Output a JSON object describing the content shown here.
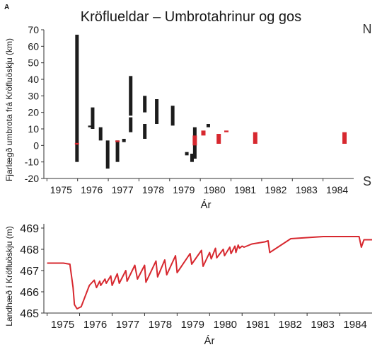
{
  "panel_label": "A",
  "title": "Kröflueldar – Umbrotahrinur og gos",
  "chart_data": [
    {
      "type": "bar",
      "subtype": "floating-range",
      "title": "Kröflueldar – Umbrotahrinur og gos",
      "xlabel": "Ár",
      "ylabel": "Fjarlægð umbrota frá Kröfluöskju (km)",
      "xticks": [
        "1975",
        "1976",
        "1977",
        "1978",
        "1979",
        "1980",
        "1981",
        "1982",
        "1983",
        "1984"
      ],
      "yticks": [
        -20,
        -10,
        0,
        10,
        20,
        30,
        40,
        50,
        60,
        70
      ],
      "xlim": [
        1974.9,
        1985.0
      ],
      "ylim": [
        -20,
        70
      ],
      "compass": {
        "top": "N",
        "bottom": "S"
      },
      "colors": {
        "rifting": "#1c1c1c",
        "eruption": "#d7282f"
      },
      "series": [
        {
          "kind": "rifting",
          "bars": [
            {
              "x": 1975.98,
              "ymin": -10,
              "ymax": 67
            },
            {
              "x": 1976.4,
              "ymin": 11,
              "ymax": 12
            },
            {
              "x": 1976.49,
              "ymin": 10,
              "ymax": 23
            },
            {
              "x": 1976.75,
              "ymin": 3,
              "ymax": 11
            },
            {
              "x": 1976.98,
              "ymin": -14,
              "ymax": 3
            },
            {
              "x": 1977.3,
              "ymin": -10,
              "ymax": 3
            },
            {
              "x": 1977.51,
              "ymin": 2,
              "ymax": 4
            },
            {
              "x": 1977.73,
              "ymin": 18,
              "ymax": 42
            },
            {
              "x": 1977.73,
              "ymin": 8,
              "ymax": 17
            },
            {
              "x": 1978.19,
              "ymin": 20,
              "ymax": 30
            },
            {
              "x": 1978.19,
              "ymin": 4,
              "ymax": 13
            },
            {
              "x": 1978.58,
              "ymin": 13,
              "ymax": 28
            },
            {
              "x": 1979.1,
              "ymin": 12,
              "ymax": 24
            },
            {
              "x": 1979.56,
              "ymin": -6,
              "ymax": -4
            },
            {
              "x": 1979.73,
              "ymin": -10,
              "ymax": -5
            },
            {
              "x": 1979.82,
              "ymin": -8,
              "ymax": 11
            },
            {
              "x": 1980.26,
              "ymin": 11,
              "ymax": 13
            }
          ]
        },
        {
          "kind": "eruption",
          "bars": [
            {
              "x": 1975.98,
              "ymin": 0.5,
              "ymax": 1.5
            },
            {
              "x": 1977.3,
              "ymin": 2,
              "ymax": 3
            },
            {
              "x": 1979.82,
              "ymin": 0,
              "ymax": 6
            },
            {
              "x": 1980.1,
              "ymin": 6,
              "ymax": 9
            },
            {
              "x": 1980.6,
              "ymin": 1,
              "ymax": 7
            },
            {
              "x": 1980.85,
              "ymin": 8,
              "ymax": 9
            },
            {
              "x": 1981.79,
              "ymin": 1,
              "ymax": 8
            },
            {
              "x": 1984.7,
              "ymin": 1,
              "ymax": 8
            }
          ]
        }
      ]
    },
    {
      "type": "line",
      "xlabel": "Ár",
      "ylabel": "Landhæð í Kröfluöskju (m)",
      "xticks": [
        "1975",
        "1976",
        "1977",
        "1978",
        "1979",
        "1980",
        "1981",
        "1982",
        "1983",
        "1984"
      ],
      "yticks": [
        465,
        466,
        467,
        468,
        469
      ],
      "xlim": [
        1974.9,
        1985.0
      ],
      "ylim": [
        465,
        469
      ],
      "color": "#d7282f",
      "x": [
        1975.0,
        1975.5,
        1975.7,
        1975.8,
        1975.84,
        1975.92,
        1976.05,
        1976.3,
        1976.45,
        1976.52,
        1976.62,
        1976.65,
        1976.78,
        1976.82,
        1976.96,
        1977.0,
        1977.16,
        1977.22,
        1977.42,
        1977.46,
        1977.7,
        1977.78,
        1978.0,
        1978.04,
        1978.35,
        1978.4,
        1978.62,
        1978.68,
        1978.95,
        1979.0,
        1979.4,
        1979.45,
        1979.75,
        1979.8,
        1980.0,
        1980.05,
        1980.18,
        1980.22,
        1980.42,
        1980.46,
        1980.62,
        1980.66,
        1980.78,
        1980.81,
        1980.88,
        1980.92,
        1981.0,
        1981.06,
        1981.3,
        1981.7,
        1981.8,
        1981.85,
        1982.5,
        1983.0,
        1983.5,
        1984.0,
        1984.6,
        1984.67,
        1984.75,
        1985.0
      ],
      "y": [
        467.35,
        467.35,
        467.3,
        466.2,
        465.4,
        465.2,
        465.3,
        466.3,
        466.55,
        466.2,
        466.5,
        466.3,
        466.6,
        466.4,
        466.75,
        466.3,
        466.85,
        466.4,
        467.0,
        466.5,
        467.25,
        466.6,
        467.25,
        466.45,
        467.45,
        466.7,
        467.5,
        466.8,
        467.7,
        466.9,
        467.8,
        467.3,
        467.95,
        467.2,
        467.85,
        467.55,
        468.05,
        467.6,
        468.0,
        467.7,
        468.1,
        467.8,
        468.15,
        467.85,
        468.2,
        468.05,
        468.15,
        468.1,
        468.25,
        468.35,
        468.4,
        467.85,
        468.5,
        468.55,
        468.6,
        468.6,
        468.6,
        468.1,
        468.45,
        468.45
      ]
    }
  ]
}
